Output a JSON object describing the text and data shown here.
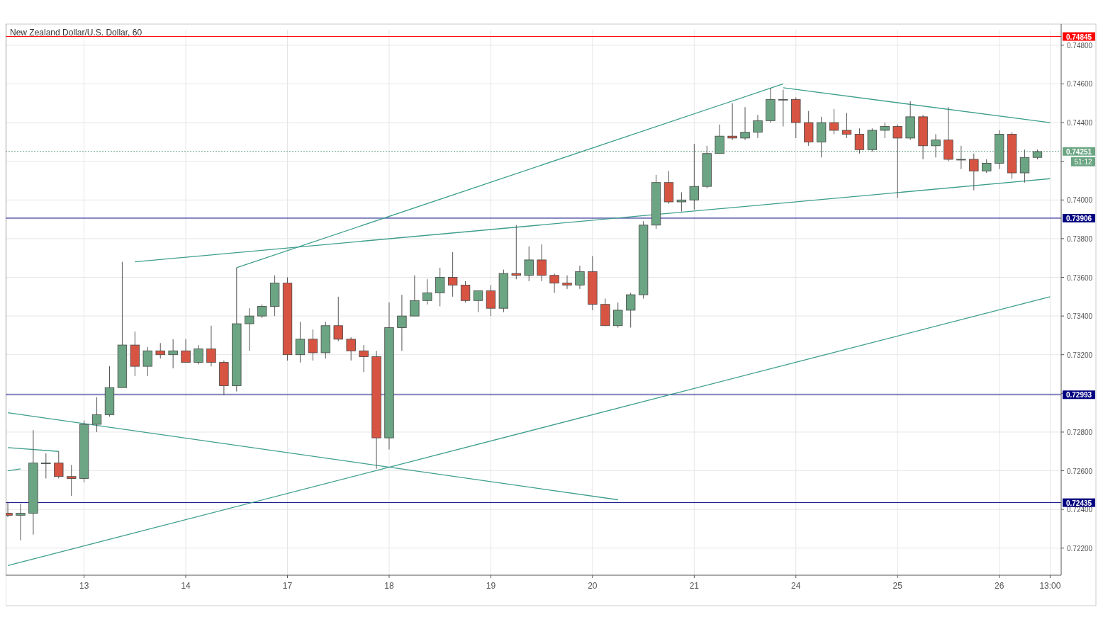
{
  "chart_data": {
    "type": "candlestick",
    "title": "New Zealand Dollar/U.S. Dollar, 60",
    "categories": [
      null,
      null,
      null,
      null,
      null,
      null,
      "13",
      null,
      null,
      null,
      null,
      null,
      null,
      null,
      "14",
      null,
      null,
      null,
      null,
      null,
      null,
      null,
      "17",
      null,
      null,
      null,
      null,
      null,
      null,
      null,
      "18",
      null,
      null,
      null,
      null,
      null,
      null,
      null,
      "19",
      null,
      null,
      null,
      null,
      null,
      null,
      null,
      "20",
      null,
      null,
      null,
      null,
      null,
      null,
      null,
      "21",
      null,
      null,
      null,
      null,
      null,
      null,
      null,
      "24",
      null,
      null,
      null,
      null,
      null,
      null,
      null,
      "25",
      null,
      null,
      null,
      null,
      null,
      null,
      null,
      "26",
      null,
      null,
      null,
      "13:00"
    ],
    "colors": [
      "#d75442",
      "#6ba583",
      "#6ba583",
      "#6ba583",
      "#d75442",
      "#d75442",
      "#6ba583",
      "#6ba583",
      "#6ba583",
      "#6ba583",
      "#d75442",
      "#6ba583",
      "#d75442",
      "#6ba583",
      "#d75442",
      "#6ba583",
      "#d75442",
      "#d75442",
      "#6ba583",
      "#6ba583",
      "#6ba583",
      "#6ba583",
      "#d75442",
      "#6ba583",
      "#d75442",
      "#6ba583",
      "#d75442",
      "#d75442",
      "#d75442",
      "#d75442",
      "#6ba583",
      "#6ba583",
      "#6ba583",
      "#6ba583",
      "#6ba583",
      "#d75442",
      "#d75442",
      "#6ba583",
      "#d75442",
      "#6ba583",
      "#d75442",
      "#6ba583",
      "#d75442",
      "#d75442",
      "#d75442",
      "#6ba583",
      "#d75442",
      "#d75442",
      "#6ba583",
      "#6ba583",
      "#6ba583",
      "#6ba583",
      "#d75442",
      "#6ba583",
      "#6ba583",
      "#6ba583",
      "#6ba583",
      "#d75442",
      "#6ba583",
      "#6ba583",
      "#6ba583",
      "#6ba583",
      "#d75442",
      "#d75442",
      "#6ba583",
      "#d75442",
      "#d75442",
      "#d75442",
      "#6ba583",
      "#6ba583",
      "#d75442",
      "#6ba583",
      "#d75442",
      "#6ba583",
      "#d75442",
      "#6ba583",
      "#d75442",
      "#6ba583",
      "#6ba583",
      "#d75442",
      "#6ba583",
      "#6ba583",
      null
    ],
    "ohlc": [
      [
        0.7238,
        0.7244,
        0.7236,
        0.7237
      ],
      [
        0.7237,
        0.7243,
        0.7224,
        0.7238
      ],
      [
        0.7238,
        0.7281,
        0.7227,
        0.7264
      ],
      [
        0.7264,
        0.7269,
        0.7256,
        0.7264
      ],
      [
        0.7264,
        0.727,
        0.7256,
        0.7257
      ],
      [
        0.7257,
        0.7263,
        0.7247,
        0.7256
      ],
      [
        0.7256,
        0.7286,
        0.7254,
        0.7284
      ],
      [
        0.7284,
        0.7298,
        0.728,
        0.7289
      ],
      [
        0.7289,
        0.7314,
        0.7288,
        0.7303
      ],
      [
        0.7303,
        0.7368,
        0.7303,
        0.7325
      ],
      [
        0.7325,
        0.7332,
        0.7309,
        0.7314
      ],
      [
        0.7314,
        0.7324,
        0.7309,
        0.7322
      ],
      [
        0.7322,
        0.7326,
        0.7318,
        0.732
      ],
      [
        0.732,
        0.7328,
        0.7313,
        0.7322
      ],
      [
        0.7322,
        0.7328,
        0.7316,
        0.7316
      ],
      [
        0.7316,
        0.7325,
        0.7315,
        0.7323
      ],
      [
        0.7323,
        0.7335,
        0.7314,
        0.7316
      ],
      [
        0.7316,
        0.7317,
        0.7299,
        0.7304
      ],
      [
        0.7304,
        0.7365,
        0.7301,
        0.7336
      ],
      [
        0.7336,
        0.7344,
        0.7322,
        0.734
      ],
      [
        0.734,
        0.7346,
        0.7339,
        0.7345
      ],
      [
        0.7345,
        0.7361,
        0.734,
        0.7357
      ],
      [
        0.7357,
        0.736,
        0.7317,
        0.732
      ],
      [
        0.732,
        0.7337,
        0.7316,
        0.7328
      ],
      [
        0.7328,
        0.7333,
        0.7317,
        0.7321
      ],
      [
        0.7321,
        0.7337,
        0.7318,
        0.7335
      ],
      [
        0.7335,
        0.735,
        0.7327,
        0.7328
      ],
      [
        0.7328,
        0.7329,
        0.7317,
        0.7322
      ],
      [
        0.7322,
        0.7325,
        0.7311,
        0.7319
      ],
      [
        0.7319,
        0.7322,
        0.7261,
        0.7277
      ],
      [
        0.7277,
        0.7347,
        0.7271,
        0.7334
      ],
      [
        0.7334,
        0.7351,
        0.7322,
        0.734
      ],
      [
        0.734,
        0.7361,
        0.734,
        0.7348
      ],
      [
        0.7348,
        0.7359,
        0.7346,
        0.7352
      ],
      [
        0.7352,
        0.7365,
        0.7345,
        0.736
      ],
      [
        0.736,
        0.7373,
        0.735,
        0.7356
      ],
      [
        0.7356,
        0.7358,
        0.7347,
        0.7348
      ],
      [
        0.7348,
        0.7353,
        0.7342,
        0.7353
      ],
      [
        0.7353,
        0.7356,
        0.734,
        0.7344
      ],
      [
        0.7344,
        0.7364,
        0.7342,
        0.7362
      ],
      [
        0.7362,
        0.7387,
        0.7359,
        0.7361
      ],
      [
        0.7361,
        0.7376,
        0.7358,
        0.7369
      ],
      [
        0.7369,
        0.7377,
        0.7358,
        0.7361
      ],
      [
        0.7361,
        0.7362,
        0.7352,
        0.7357
      ],
      [
        0.7357,
        0.7361,
        0.7354,
        0.7356
      ],
      [
        0.7356,
        0.7366,
        0.7354,
        0.7363
      ],
      [
        0.7363,
        0.7371,
        0.7343,
        0.7346
      ],
      [
        0.7346,
        0.7349,
        0.7335,
        0.7335
      ],
      [
        0.7335,
        0.7347,
        0.7334,
        0.7343
      ],
      [
        0.7343,
        0.7352,
        0.7334,
        0.7351
      ],
      [
        0.7351,
        0.7389,
        0.7349,
        0.7387
      ],
      [
        0.7387,
        0.7413,
        0.7385,
        0.7409
      ],
      [
        0.7409,
        0.7415,
        0.7398,
        0.7399
      ],
      [
        0.7399,
        0.7404,
        0.7394,
        0.74
      ],
      [
        0.74,
        0.7429,
        0.7395,
        0.7407
      ],
      [
        0.7407,
        0.7428,
        0.7406,
        0.7424
      ],
      [
        0.7424,
        0.7439,
        0.7424,
        0.7433
      ],
      [
        0.7433,
        0.745,
        0.7431,
        0.7432
      ],
      [
        0.7432,
        0.7448,
        0.7431,
        0.7435
      ],
      [
        0.7435,
        0.7444,
        0.7432,
        0.7441
      ],
      [
        0.7441,
        0.7458,
        0.744,
        0.7452
      ],
      [
        0.7452,
        0.7457,
        0.7438,
        0.7452
      ],
      [
        0.7452,
        0.7453,
        0.7432,
        0.744
      ],
      [
        0.744,
        0.7446,
        0.7428,
        0.743
      ],
      [
        0.743,
        0.7443,
        0.7422,
        0.744
      ],
      [
        0.744,
        0.7447,
        0.7434,
        0.7436
      ],
      [
        0.7436,
        0.7445,
        0.7432,
        0.7434
      ],
      [
        0.7434,
        0.7437,
        0.7424,
        0.7426
      ],
      [
        0.7426,
        0.7437,
        0.7425,
        0.7436
      ],
      [
        0.7436,
        0.744,
        0.7432,
        0.7438
      ],
      [
        0.7438,
        0.7439,
        0.7401,
        0.7432
      ],
      [
        0.7432,
        0.7451,
        0.7431,
        0.7443
      ],
      [
        0.7443,
        0.7444,
        0.7421,
        0.7428
      ],
      [
        0.7428,
        0.7434,
        0.7422,
        0.7431
      ],
      [
        0.7431,
        0.7448,
        0.742,
        0.7421
      ],
      [
        0.7421,
        0.7428,
        0.7416,
        0.7421
      ],
      [
        0.7421,
        0.7424,
        0.7405,
        0.7415
      ],
      [
        0.7415,
        0.7421,
        0.7414,
        0.7419
      ],
      [
        0.7419,
        0.7436,
        0.7416,
        0.7434
      ],
      [
        0.7434,
        0.7435,
        0.7411,
        0.7414
      ],
      [
        0.7414,
        0.7426,
        0.7409,
        0.7422
      ],
      [
        0.7422,
        0.7426,
        0.7421,
        0.7425
      ],
      null
    ],
    "series": [
      {
        "type": "line",
        "color": "#3d9e8c",
        "values": [
          null,
          null,
          null,
          null,
          null,
          null,
          null,
          null,
          null,
          null,
          0.7368,
          null,
          null,
          null,
          null,
          null,
          null,
          null,
          null,
          null,
          null,
          null,
          null,
          null,
          null,
          null,
          null,
          null,
          null,
          null,
          null,
          null,
          null,
          null,
          null,
          null,
          null,
          null,
          null,
          null,
          null,
          null,
          null,
          null,
          null,
          null,
          null,
          null,
          null,
          null,
          null,
          null,
          null,
          null,
          null,
          null,
          null,
          null,
          null,
          null,
          null,
          null,
          null,
          null,
          null,
          null,
          null,
          null,
          null,
          null,
          null,
          null,
          null,
          null,
          null,
          null,
          null,
          null,
          null,
          null,
          null,
          null,
          0.7411
        ]
      },
      {
        "type": "line",
        "color": "#3d9e8c",
        "values": [
          null,
          null,
          null,
          null,
          null,
          null,
          null,
          null,
          null,
          null,
          null,
          null,
          null,
          null,
          null,
          null,
          null,
          null,
          0.7365,
          null,
          null,
          null,
          null,
          null,
          null,
          null,
          null,
          null,
          null,
          null,
          null,
          null,
          null,
          null,
          null,
          null,
          null,
          null,
          null,
          null,
          null,
          null,
          null,
          null,
          null,
          null,
          null,
          null,
          null,
          null,
          null,
          null,
          null,
          null,
          null,
          null,
          null,
          null,
          null,
          null,
          null,
          0.746,
          null,
          null,
          null,
          null,
          null,
          null,
          null,
          null,
          null,
          null,
          null,
          null,
          null,
          null,
          null,
          null,
          null,
          null,
          null,
          null,
          null
        ]
      },
      {
        "type": "line",
        "color": "#3d9e8c",
        "values": [
          null,
          null,
          null,
          null,
          null,
          null,
          null,
          null,
          null,
          null,
          null,
          null,
          null,
          null,
          null,
          null,
          null,
          null,
          null,
          null,
          null,
          null,
          null,
          null,
          null,
          null,
          null,
          null,
          null,
          null,
          null,
          null,
          null,
          null,
          null,
          null,
          null,
          null,
          null,
          null,
          null,
          null,
          null,
          null,
          null,
          null,
          null,
          null,
          null,
          null,
          null,
          null,
          null,
          null,
          null,
          null,
          null,
          null,
          null,
          null,
          null,
          0.7458,
          null,
          null,
          null,
          null,
          null,
          null,
          null,
          null,
          null,
          null,
          null,
          null,
          null,
          null,
          null,
          null,
          null,
          null,
          null,
          null,
          0.744
        ]
      },
      {
        "type": "line",
        "color": "#3d9e8c",
        "values": [
          0.7211,
          null,
          null,
          null,
          null,
          null,
          null,
          null,
          null,
          null,
          null,
          null,
          null,
          null,
          null,
          null,
          null,
          null,
          null,
          null,
          null,
          null,
          null,
          null,
          null,
          null,
          null,
          null,
          null,
          null,
          null,
          null,
          null,
          null,
          null,
          null,
          null,
          null,
          null,
          null,
          null,
          null,
          null,
          null,
          null,
          null,
          null,
          null,
          null,
          null,
          null,
          null,
          null,
          null,
          null,
          null,
          null,
          null,
          null,
          null,
          null,
          null,
          null,
          null,
          null,
          null,
          null,
          null,
          null,
          null,
          null,
          null,
          null,
          null,
          null,
          null,
          null,
          null,
          null,
          null,
          null,
          null,
          0.735
        ]
      },
      {
        "type": "line",
        "color": "#3d9e8c",
        "values": [
          0.729,
          null,
          null,
          null,
          null,
          null,
          null,
          null,
          null,
          null,
          null,
          null,
          null,
          null,
          null,
          null,
          null,
          null,
          null,
          null,
          null,
          null,
          null,
          null,
          null,
          null,
          null,
          null,
          null,
          null,
          null,
          null,
          null,
          null,
          null,
          null,
          null,
          null,
          null,
          null,
          null,
          null,
          null,
          null,
          null,
          null,
          null,
          null,
          0.7245,
          null,
          null,
          null,
          null,
          null,
          null,
          null,
          null,
          null,
          null,
          null,
          null,
          null,
          null,
          null,
          null,
          null,
          null,
          null,
          null,
          null,
          null,
          null,
          null,
          null,
          null,
          null,
          null,
          null,
          null,
          null,
          null,
          null,
          null
        ]
      },
      {
        "type": "line",
        "color": "#3d9e8c",
        "values": [
          0.7272,
          null,
          null,
          null,
          0.727,
          null,
          null,
          null,
          null,
          null,
          null,
          null,
          null,
          null,
          null,
          null,
          null,
          null,
          null,
          null,
          null,
          null,
          null,
          null,
          null,
          null,
          null,
          null,
          null,
          null,
          null,
          null,
          null,
          null,
          null,
          null,
          null,
          null,
          null,
          null,
          null,
          null,
          null,
          null,
          null,
          null,
          null,
          null,
          null,
          null,
          null,
          null,
          null,
          null,
          null,
          null,
          null,
          null,
          null,
          null,
          null,
          null,
          null,
          null,
          null,
          null,
          null,
          null,
          null,
          null,
          null,
          null,
          null,
          null,
          null,
          null,
          null,
          null,
          null,
          null,
          null,
          null,
          null
        ]
      },
      {
        "type": "line",
        "color": "#3d9e8c",
        "values": [
          0.726,
          0.7261,
          null,
          null,
          null,
          null,
          null,
          null,
          null,
          null,
          null,
          null,
          null,
          null,
          null,
          null,
          null,
          null,
          null,
          null,
          null,
          null,
          null,
          null,
          null,
          null,
          null,
          null,
          null,
          null,
          null,
          null,
          null,
          null,
          null,
          null,
          null,
          null,
          null,
          null,
          null,
          null,
          null,
          null,
          null,
          null,
          null,
          null,
          null,
          null,
          null,
          null,
          null,
          null,
          null,
          null,
          null,
          null,
          null,
          null,
          null,
          null,
          null,
          null,
          null,
          null,
          null,
          null,
          null,
          null,
          null,
          null,
          null,
          null,
          null,
          null,
          null,
          null,
          null,
          null,
          null,
          null,
          null
        ]
      }
    ],
    "ref_lines": [
      {
        "axis": "y",
        "value": 0.74845,
        "label": "0.74845",
        "color": "#ff0000"
      },
      {
        "axis": "y",
        "value": 0.73906,
        "label": "0.73906",
        "color": "#000080"
      },
      {
        "axis": "y",
        "value": 0.72993,
        "label": "0.72993",
        "color": "#000080"
      },
      {
        "axis": "y",
        "value": 0.72435,
        "label": "0.72435",
        "color": "#000080"
      },
      {
        "axis": "y",
        "value": 0.74251,
        "label": "0.74251",
        "color": "#6ba583",
        "line_style": "dotted"
      }
    ],
    "annotations": [
      "51:12"
    ],
    "ylim": [
      0.7206,
      0.7488
    ],
    "yticks": [
      {
        "value": 0.722,
        "label": "0.72200"
      },
      {
        "value": 0.724,
        "label": "0.72400"
      },
      {
        "value": 0.726,
        "label": "0.72600"
      },
      {
        "value": 0.728,
        "label": "0.72800"
      },
      {
        "value": 0.73,
        "label": null
      },
      {
        "value": 0.732,
        "label": "0.73200"
      },
      {
        "value": 0.734,
        "label": "0.73400"
      },
      {
        "value": 0.736,
        "label": "0.73600"
      },
      {
        "value": 0.738,
        "label": "0.73800"
      },
      {
        "value": 0.74,
        "label": "0.74000"
      },
      {
        "value": 0.742,
        "label": null
      },
      {
        "value": 0.744,
        "label": "0.74400"
      },
      {
        "value": 0.746,
        "label": "0.74600"
      },
      {
        "value": 0.748,
        "label": "0.74800"
      }
    ],
    "grid": true
  }
}
